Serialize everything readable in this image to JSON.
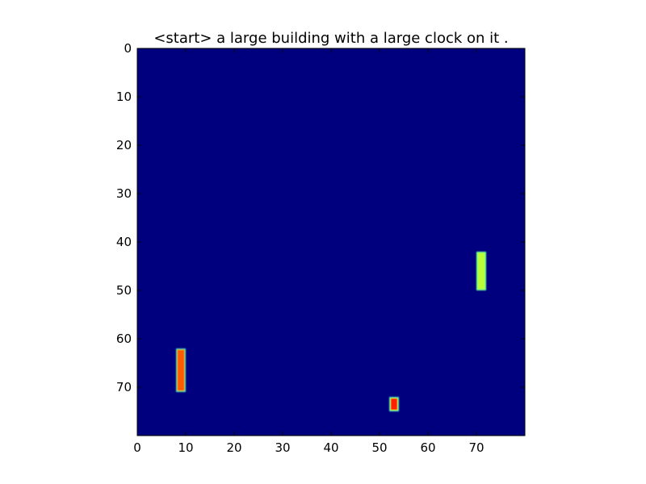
{
  "chart_data": {
    "type": "heatmap",
    "title": "<start> a large building with a large clock on it .",
    "xlabel": "",
    "ylabel": "",
    "xlim": [
      0,
      80
    ],
    "ylim": [
      80,
      0
    ],
    "x_ticks": [
      0,
      10,
      20,
      30,
      40,
      50,
      60,
      70
    ],
    "y_ticks": [
      0,
      10,
      20,
      30,
      40,
      50,
      60,
      70
    ],
    "grid": false,
    "colormap": "jet",
    "background_value": 0.0,
    "background_color": "#00007f",
    "highlights": [
      {
        "x_range": [
          8,
          10
        ],
        "y_range": [
          62,
          71
        ],
        "edge_color": "#40e0d0",
        "core_color": "#ff5a00",
        "inner_color": "#ff7a00",
        "mid_color": "#ffa000"
      },
      {
        "x_range": [
          70,
          72
        ],
        "y_range": [
          42,
          50
        ],
        "edge_color": "#60ff9a",
        "core_color": "#b8ff3a",
        "inner_color": "#c8ff2a",
        "mid_color": "#b0ff40"
      },
      {
        "x_range": [
          52,
          54
        ],
        "y_range": [
          72,
          75
        ],
        "edge_color": "#40e0d0",
        "core_color": "#ff2000",
        "inner_color": "#80ff80",
        "mid_color": "#ffe000"
      }
    ]
  }
}
